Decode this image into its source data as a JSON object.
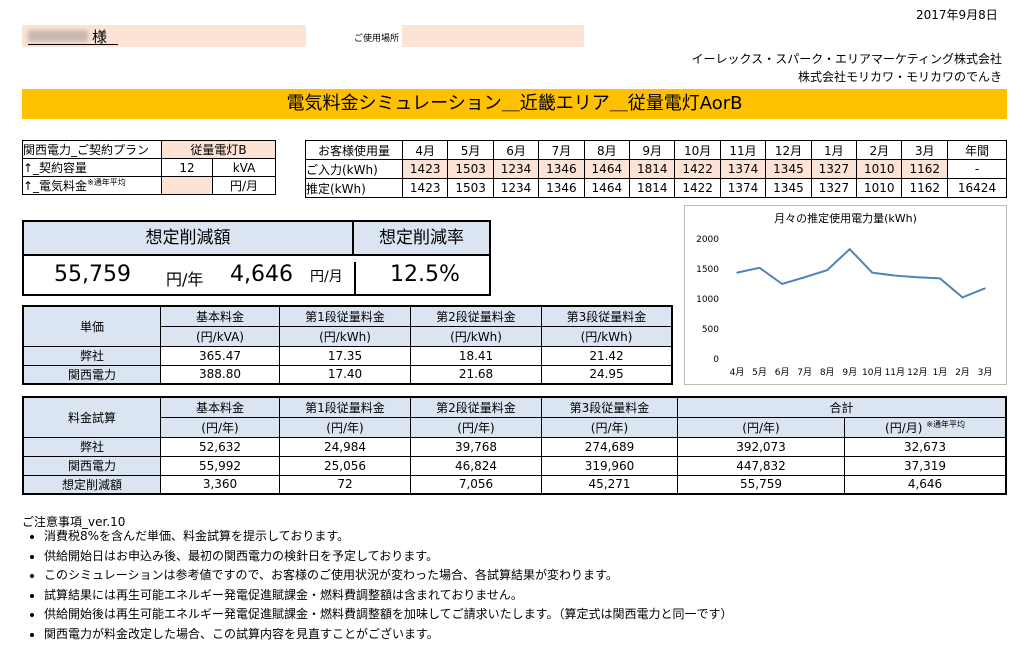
{
  "header": {
    "date": "2017年9月8日",
    "customer_suffix": "様",
    "place_label": "ご使用場所",
    "company1": "イーレックス・スパーク・エリアマーケティング株式会社",
    "company2": "株式会社モリカワ・モリカワのでんき"
  },
  "banner": {
    "title": "電気料金シミュレーション＿近畿エリア＿従量電灯AorB"
  },
  "plan": {
    "label1": "関西電力_ご契約プラン",
    "value1": "従量電灯B",
    "label2": "↑_契約容量",
    "value2": "12",
    "unit2": "kVA",
    "label3": "↑_電気料金",
    "note3": "※通年平均",
    "unit3": "円/月"
  },
  "usage": {
    "months": [
      "4月",
      "5月",
      "6月",
      "7月",
      "8月",
      "9月",
      "10月",
      "11月",
      "12月",
      "1月",
      "2月",
      "3月"
    ],
    "header_label": "お客様使用量",
    "annual_label": "年間",
    "row1_label": "ご入力(kWh)",
    "row1": [
      "1423",
      "1503",
      "1234",
      "1346",
      "1464",
      "1814",
      "1422",
      "1374",
      "1345",
      "1327",
      "1010",
      "1162"
    ],
    "row1_annual": "-",
    "row2_label": "推定(kWh)",
    "row2": [
      "1423",
      "1503",
      "1234",
      "1346",
      "1464",
      "1814",
      "1422",
      "1374",
      "1345",
      "1327",
      "1010",
      "1162"
    ],
    "row2_annual": "16424"
  },
  "savings": {
    "amount_label": "想定削減額",
    "rate_label": "想定削減率",
    "yearly": "55,759",
    "yearly_unit": "円/年",
    "monthly": "4,646",
    "monthly_unit": "円/月",
    "rate": "12.5%"
  },
  "unit_price": {
    "label": "単価",
    "cols": [
      "基本料金",
      "第1段従量料金",
      "第2段従量料金",
      "第3段従量料金"
    ],
    "units": [
      "(円/kVA)",
      "(円/kWh)",
      "(円/kWh)",
      "(円/kWh)"
    ],
    "rows": [
      {
        "name": "弊社",
        "values": [
          "365.47",
          "17.35",
          "18.41",
          "21.42"
        ]
      },
      {
        "name": "関西電力",
        "values": [
          "388.80",
          "17.40",
          "21.68",
          "24.95"
        ]
      }
    ]
  },
  "fee_calc": {
    "label": "料金試算",
    "cols": [
      "基本料金",
      "第1段従量料金",
      "第2段従量料金",
      "第3段従量料金",
      "合計"
    ],
    "units": [
      "(円/年)",
      "(円/年)",
      "(円/年)",
      "(円/年)",
      "(円/年)",
      "(円/月)"
    ],
    "avg_note": "※通年平均",
    "rows": [
      {
        "name": "弊社",
        "values": [
          "52,632",
          "24,984",
          "39,768",
          "274,689",
          "392,073",
          "32,673"
        ]
      },
      {
        "name": "関西電力",
        "values": [
          "55,992",
          "25,056",
          "46,824",
          "319,960",
          "447,832",
          "37,319"
        ]
      },
      {
        "name": "想定削減額",
        "values": [
          "3,360",
          "72",
          "7,056",
          "45,271",
          "55,759",
          "4,646"
        ]
      }
    ]
  },
  "notes": {
    "title": "ご注意事項_ver.10",
    "items": [
      "消費税8%を含んだ単価、料金試算を提示しております。",
      "供給開始日はお申込み後、最初の関西電力の検針日を予定しております。",
      "このシミュレーションは参考値ですので、お客様のご使用状況が変わった場合、各試算結果が変わります。",
      "試算結果には再生可能エネルギー発電促進賦課金・燃料費調整額は含まれておりません。",
      "供給開始後は再生可能エネルギー発電促進賦課金・燃料費調整額を加味してご請求いたします。（算定式は関西電力と同一です）",
      "関西電力が料金改定した場合、この試算内容を見直すことがございます。"
    ]
  },
  "chart_data": {
    "type": "line",
    "title": "月々の推定使用電力量(kWh)",
    "categories": [
      "4月",
      "5月",
      "6月",
      "7月",
      "8月",
      "9月",
      "10月",
      "11月",
      "12月",
      "1月",
      "2月",
      "3月"
    ],
    "values": [
      1423,
      1503,
      1234,
      1346,
      1464,
      1814,
      1422,
      1374,
      1345,
      1327,
      1010,
      1162
    ],
    "yticks": [
      "2000",
      "1500",
      "1000",
      "500",
      "0"
    ],
    "ylim": [
      0,
      2000
    ],
    "color": "#4f81bd",
    "grid": false
  }
}
